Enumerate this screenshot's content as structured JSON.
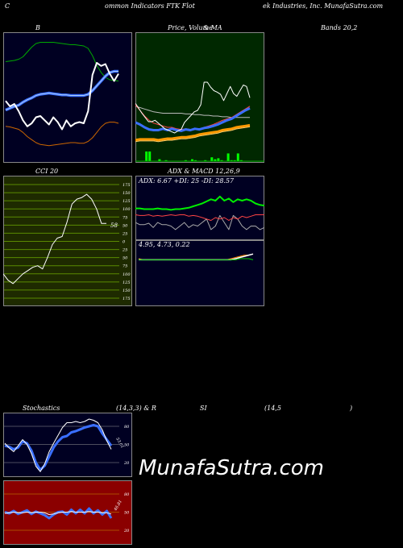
{
  "header": {
    "p1": "C",
    "p2": "ommon  Indicators FTK Flot",
    "p3": "ek Industries,  Inc. MunafaSutra.com"
  },
  "titles": {
    "bollinger_b": "B",
    "price_volume": "Price,  Volume",
    "price_ma": "&  MA",
    "bands": "Bands 20,2",
    "cci": "CCI 20",
    "adx": "ADX  & MACD 12,26,9",
    "stoch_a": "Stochastics",
    "stoch_b": "(14,3,3) & R",
    "rsi_a": "SI",
    "rsi_b": "(14,5",
    "rsi_c": ")"
  },
  "adx_info": "ADX: 6.67  +DI: 25  -DI: 28.57",
  "macd_info": "4.95,  4.73,  0.22",
  "watermark": "MunafaSutra.com",
  "colors": {
    "green_panel": "#002800",
    "cci_panel": "#1e2a00",
    "rsi_panel": "#8b0000",
    "navy": "#000022"
  },
  "chart_data": [
    {
      "type": "line",
      "name": "bollinger",
      "series": [
        {
          "values": [
            62,
            63,
            64,
            66,
            70,
            78,
            86,
            92,
            94,
            94,
            94,
            94,
            93,
            92,
            91,
            90,
            90,
            89,
            88,
            84,
            72,
            56,
            44,
            36,
            32,
            31,
            30
          ]
        },
        {
          "values": [
            -18,
            -15,
            -12,
            -10,
            -5,
            -1,
            2,
            6,
            8,
            9,
            10,
            9,
            8,
            7,
            7,
            6,
            6,
            6,
            6,
            8,
            14,
            22,
            30,
            38,
            44,
            46,
            46
          ]
        },
        {
          "values": [
            -45,
            -46,
            -48,
            -50,
            -55,
            -62,
            -67,
            -72,
            -75,
            -76,
            -77,
            -76,
            -75,
            -74,
            -73,
            -72,
            -72,
            -73,
            -73,
            -70,
            -64,
            -55,
            -46,
            -40,
            -38,
            -38,
            -40
          ]
        },
        {
          "values": [
            -3,
            -12,
            -8,
            -20,
            -35,
            -45,
            -40,
            -30,
            -28,
            -35,
            -42,
            -30,
            -38,
            -50,
            -35,
            -45,
            -40,
            -38,
            -40,
            -20,
            40,
            60,
            55,
            58,
            42,
            30,
            42
          ]
        }
      ]
    },
    {
      "type": "line",
      "name": "price_ma",
      "series": [
        {
          "values": [
            30,
            31,
            31,
            31,
            31,
            30,
            31,
            32,
            32,
            33,
            34,
            34,
            35,
            36,
            38,
            39,
            40,
            41,
            42,
            44,
            45,
            46,
            48,
            49,
            50,
            51
          ]
        },
        {
          "values": [
            55,
            52,
            48,
            45,
            44,
            44,
            46,
            44,
            46,
            44,
            43,
            45,
            44,
            46,
            45,
            47,
            48,
            50,
            52,
            55,
            58,
            60,
            64,
            68,
            72,
            75
          ]
        },
        {
          "values": [
            80,
            72,
            64,
            58,
            54,
            52,
            50,
            48,
            48,
            46,
            45,
            46,
            45,
            46,
            46,
            48,
            50,
            52,
            55,
            58,
            60,
            62,
            66,
            70,
            74,
            78
          ]
        },
        {
          "values": [
            78,
            76,
            74,
            72,
            70,
            69,
            68,
            68,
            68,
            68,
            68,
            67,
            67,
            66,
            66,
            65,
            65,
            64,
            64,
            63,
            63,
            62,
            62,
            62,
            62,
            62
          ]
        },
        {
          "values": [
            82,
            75,
            68,
            62,
            56,
            56,
            58,
            54,
            50,
            46,
            44,
            42,
            40,
            43,
            45,
            55,
            60,
            65,
            70,
            72,
            80,
            112,
            112,
            105,
            100,
            98,
            95,
            86,
            96,
            106,
            96,
            92,
            100,
            108,
            106,
            90
          ]
        }
      ],
      "volume": [
        0,
        0,
        0,
        10,
        10,
        0,
        0,
        2,
        0,
        1,
        0,
        0,
        0,
        0,
        0,
        1,
        0,
        2,
        1,
        0,
        0,
        1,
        0,
        4,
        2,
        3,
        1,
        0,
        8,
        1,
        1,
        8,
        1,
        0,
        0,
        0
      ]
    },
    {
      "type": "line",
      "name": "cci",
      "levels": [
        175,
        150,
        125,
        100,
        75,
        50,
        25,
        0,
        -25,
        -50,
        -75,
        -100,
        -125,
        -150,
        -175
      ],
      "series": [
        {
          "values": [
            -100,
            -120,
            -130,
            -115,
            -100,
            -90,
            -80,
            -75,
            -85,
            -50,
            -10,
            10,
            15,
            60,
            115,
            130,
            135,
            145,
            130,
            100,
            55,
            55
          ]
        }
      ],
      "last_label": "58"
    },
    {
      "type": "line",
      "name": "adx",
      "series": [
        {
          "values": [
            5,
            5,
            4,
            4,
            4,
            5,
            4,
            4,
            3,
            4,
            4,
            5,
            6,
            8,
            10,
            12,
            15,
            18,
            16,
            22,
            16,
            19,
            14,
            18,
            16,
            18,
            16,
            12,
            10,
            9
          ]
        },
        {
          "values": [
            -4,
            -5,
            -5,
            -4,
            -6,
            -5,
            -6,
            -5,
            -4,
            -5,
            -4,
            -4,
            -6,
            -5,
            -6,
            -8,
            -10,
            -12,
            -8,
            -10,
            -8,
            -12,
            -8,
            -10,
            -6,
            -8,
            -6,
            -4,
            -4,
            -4
          ]
        },
        {
          "values": [
            -15,
            -18,
            -18,
            -16,
            -22,
            -15,
            -18,
            -18,
            -20,
            -25,
            -20,
            -15,
            -22,
            -18,
            -20,
            -15,
            -10,
            -25,
            -20,
            -5,
            -15,
            -25,
            -5,
            -10,
            -20,
            -25,
            -20,
            -20,
            -25,
            -22
          ]
        }
      ]
    },
    {
      "type": "line",
      "name": "macd",
      "series": [
        {
          "values": [
            0,
            0,
            0,
            0,
            0,
            0,
            0,
            0,
            0,
            0,
            0,
            0,
            0,
            0,
            0,
            0,
            0,
            0,
            0,
            0,
            0,
            0,
            1,
            2,
            3,
            4,
            5
          ]
        },
        {
          "values": [
            1,
            0,
            0,
            0,
            0,
            0,
            0,
            0,
            0,
            0,
            0,
            0,
            0,
            0,
            0,
            0,
            0,
            0,
            0,
            0,
            0,
            1,
            2,
            3,
            4,
            4,
            5
          ]
        },
        {
          "values": [
            0,
            0,
            0,
            0,
            0,
            0,
            0,
            0,
            0,
            0,
            0,
            0,
            0,
            0,
            0,
            0,
            0,
            0,
            0,
            0,
            0,
            0,
            0,
            1,
            1,
            1,
            0
          ]
        }
      ]
    },
    {
      "type": "line",
      "name": "stochastics",
      "levels": [
        80,
        50,
        20
      ],
      "series": [
        {
          "values": [
            48,
            46,
            42,
            45,
            55,
            52,
            40,
            20,
            8,
            15,
            30,
            45,
            55,
            62,
            64,
            70,
            72,
            75,
            78,
            80,
            82,
            80,
            68,
            58,
            48
          ]
        },
        {
          "values": [
            52,
            44,
            38,
            48,
            58,
            50,
            35,
            14,
            5,
            18,
            38,
            52,
            65,
            78,
            86,
            86,
            88,
            86,
            88,
            92,
            90,
            86,
            74,
            56,
            42
          ]
        }
      ],
      "last_label": "53.01"
    },
    {
      "type": "line",
      "name": "rsi",
      "levels": [
        80,
        50,
        20
      ],
      "series": [
        {
          "values": [
            48,
            49,
            50,
            49,
            49,
            50,
            49,
            50,
            50,
            49,
            46,
            47,
            49,
            50,
            50,
            51,
            50,
            50,
            50,
            51,
            50,
            50,
            49,
            49,
            47
          ]
        },
        {
          "values": [
            50,
            48,
            52,
            47,
            50,
            53,
            47,
            51,
            48,
            45,
            40,
            46,
            50,
            51,
            46,
            54,
            48,
            54,
            48,
            56,
            48,
            53,
            46,
            52,
            40
          ]
        }
      ],
      "last_label": "46.81"
    }
  ]
}
